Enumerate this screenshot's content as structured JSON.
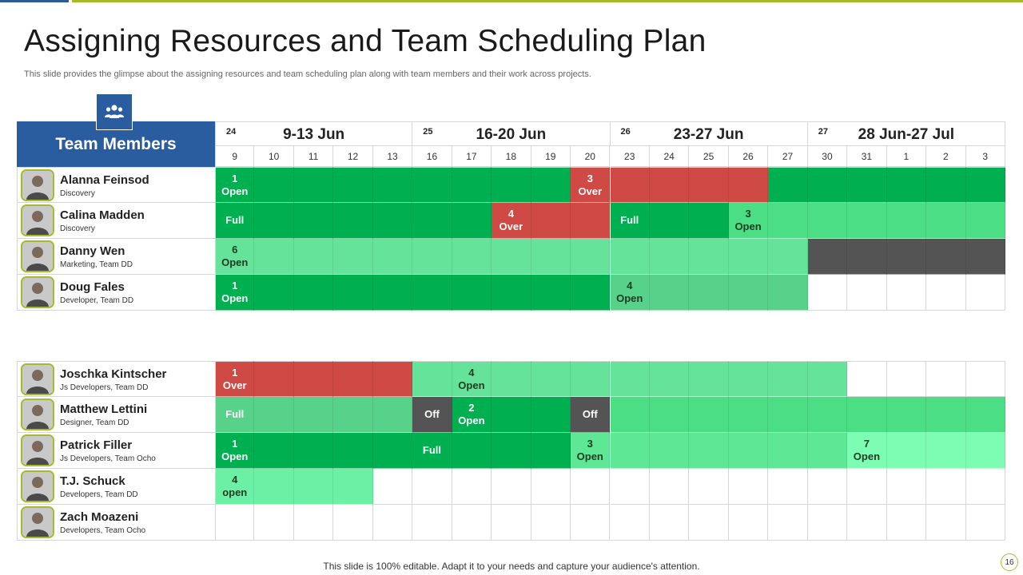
{
  "title": "Assigning Resources and Team Scheduling Plan",
  "subtitle": "This slide provides the glimpse about the assigning resources and team scheduling plan along with team members and their work across projects.",
  "header_label": "Team Members",
  "weeks": [
    {
      "num": "24",
      "label": "9-13 Jun"
    },
    {
      "num": "25",
      "label": "16-20 Jun"
    },
    {
      "num": "26",
      "label": "23-27 Jun"
    },
    {
      "num": "27",
      "label": "28 Jun-27 Jul"
    }
  ],
  "days": [
    "9",
    "10",
    "11",
    "12",
    "13",
    "16",
    "17",
    "18",
    "19",
    "20",
    "23",
    "24",
    "25",
    "26",
    "27",
    "30",
    "31",
    "1",
    "2",
    "3"
  ],
  "legend_colors": {
    "G": "#00b050",
    "R": "#d04a45",
    "L": "#65e39b",
    "M": "#58d18b",
    "N": "#4bde85",
    "P": "#5ee896",
    "Q": "#6cf0a5",
    "F": "#7dfdb3",
    "D": "#545454",
    "W": "#ffffff"
  },
  "groups": [
    {
      "members": [
        {
          "name": "Alanna Feinsod",
          "role": "Discovery",
          "cells": "GGGGGGGGGRRRRRGGGGGG",
          "labels": [
            {
              "i": 0,
              "line1": "1",
              "line2": "Open"
            },
            {
              "i": 9,
              "line1": "3",
              "line2": "Over"
            }
          ]
        },
        {
          "name": "Calina Madden",
          "role": "Discovery",
          "cells": "GGGGGGGRRRGGGNNNNNNN",
          "labels": [
            {
              "i": 0,
              "line1": "Full",
              "line2": ""
            },
            {
              "i": 7,
              "line1": "4",
              "line2": "Over"
            },
            {
              "i": 10,
              "line1": "Full",
              "line2": ""
            },
            {
              "i": 13,
              "line1": "3",
              "line2": "Open"
            }
          ]
        },
        {
          "name": "Danny Wen",
          "role": "Marketing, Team DD",
          "cells": "LLLLLLLLLLLLLLLDDDDD",
          "labels": [
            {
              "i": 0,
              "line1": "6",
              "line2": "Open"
            }
          ]
        },
        {
          "name": "Doug Fales",
          "role": "Developer, Team DD",
          "cells": "GGGGGGGGGGMMMMMWWWWW",
          "labels": [
            {
              "i": 0,
              "line1": "1",
              "line2": "Open"
            },
            {
              "i": 10,
              "line1": "4",
              "line2": "Open"
            }
          ]
        }
      ]
    },
    {
      "members": [
        {
          "name": "Joschka Kintscher",
          "role": "Js Developers, Team DD",
          "cells": "RRRRRLLLLLLLLLLLWWWW",
          "labels": [
            {
              "i": 0,
              "line1": "1",
              "line2": "Over"
            },
            {
              "i": 6,
              "line1": "4",
              "line2": "Open"
            }
          ]
        },
        {
          "name": "Matthew Lettini",
          "role": "Designer, Team DD",
          "cells": "MMMMMDGGGDNNNNNNNNNN",
          "labels": [
            {
              "i": 0,
              "line1": "Full",
              "line2": ""
            },
            {
              "i": 5,
              "line1": "Off",
              "line2": ""
            },
            {
              "i": 6,
              "line1": "2",
              "line2": "Open"
            },
            {
              "i": 9,
              "line1": "Off",
              "line2": ""
            }
          ]
        },
        {
          "name": "Patrick Filler",
          "role": "Js Developers, Team Ocho",
          "cells": "GGGGGGGGGPPPPPPPFFFF",
          "labels": [
            {
              "i": 0,
              "line1": "1",
              "line2": "Open"
            },
            {
              "i": 5,
              "line1": "Full",
              "line2": ""
            },
            {
              "i": 9,
              "line1": "3",
              "line2": "Open"
            },
            {
              "i": 16,
              "line1": "7",
              "line2": "Open"
            }
          ]
        },
        {
          "name": "T.J. Schuck",
          "role": "Developers, Team DD",
          "cells": "QQQQWWWWWWWWWWWWWWWW",
          "labels": [
            {
              "i": 0,
              "line1": "4",
              "line2": "open"
            }
          ]
        },
        {
          "name": "Zach Moazeni",
          "role": "Developers, Team Ocho",
          "cells": "WWWWWWWWWWWWWWWWWWWW",
          "labels": []
        }
      ]
    }
  ],
  "footer": "This slide is 100% editable. Adapt it to your needs and capture your audience's attention.",
  "page_number": "16"
}
